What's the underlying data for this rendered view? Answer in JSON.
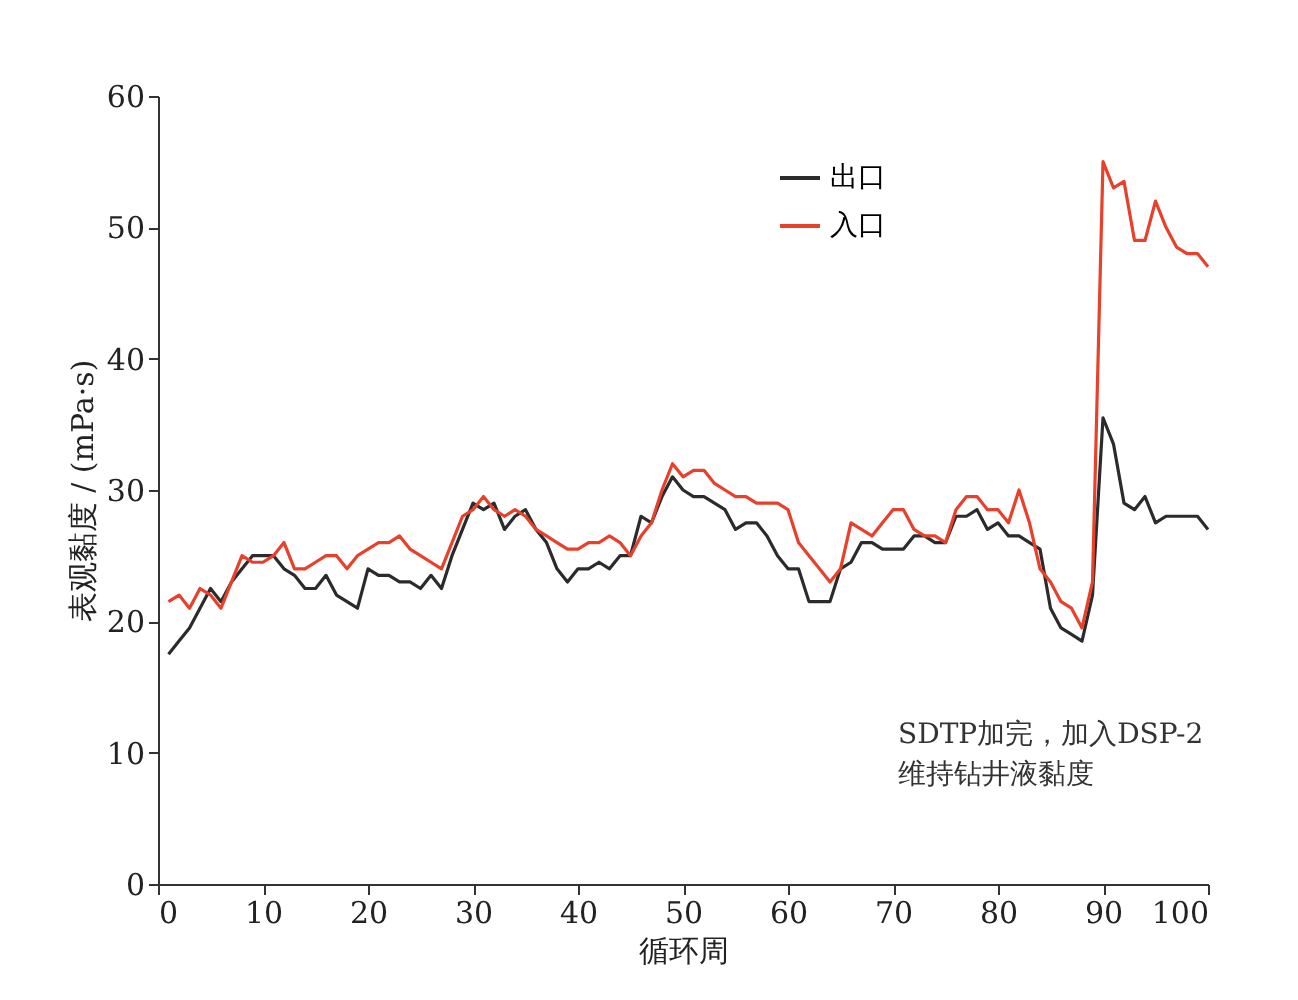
{
  "chart_data": {
    "type": "line",
    "xlabel": "循环周",
    "ylabel": "表观黏度 / (mPa·s)",
    "xlim": [
      0,
      100
    ],
    "xticks": [
      0,
      10,
      20,
      30,
      40,
      50,
      60,
      70,
      80,
      90,
      100
    ],
    "ylim": [
      0,
      60
    ],
    "yticks": [
      0,
      10,
      20,
      30,
      40,
      50,
      60
    ],
    "grid": false,
    "legend": "top right",
    "marker": "none",
    "line_style": "solid",
    "x": [
      1,
      2,
      3,
      4,
      5,
      6,
      7,
      8,
      9,
      10,
      11,
      12,
      13,
      14,
      15,
      16,
      17,
      18,
      19,
      20,
      21,
      22,
      23,
      24,
      25,
      26,
      27,
      28,
      29,
      30,
      31,
      32,
      33,
      34,
      35,
      36,
      37,
      38,
      39,
      40,
      41,
      42,
      43,
      44,
      45,
      46,
      47,
      48,
      49,
      50,
      51,
      52,
      53,
      54,
      55,
      56,
      57,
      58,
      59,
      60,
      61,
      62,
      63,
      64,
      65,
      66,
      67,
      68,
      69,
      70,
      71,
      72,
      73,
      74,
      75,
      76,
      77,
      78,
      79,
      80,
      81,
      82,
      83,
      84,
      85,
      86,
      87,
      88,
      89,
      90,
      91,
      92,
      93,
      94,
      95,
      96,
      97,
      98,
      99,
      100
    ],
    "series": [
      {
        "name": "出口",
        "color": "#2b2b2b",
        "values": [
          17.5,
          18.5,
          19.5,
          21,
          22.5,
          21.5,
          23,
          24,
          25,
          25,
          25,
          24,
          23.5,
          22.5,
          22.5,
          23.5,
          22,
          21.5,
          21,
          24,
          23.5,
          23.5,
          23,
          23,
          22.5,
          23.5,
          22.5,
          25,
          27,
          29,
          28.5,
          29,
          27,
          28,
          28.5,
          27,
          26,
          24,
          23,
          24,
          24,
          24.5,
          24,
          25,
          25,
          28,
          27.5,
          29.5,
          31,
          30,
          29.5,
          29.5,
          29,
          28.5,
          27,
          27.5,
          27.5,
          26.5,
          25,
          24,
          24,
          21.5,
          21.5,
          21.5,
          24,
          24.5,
          26,
          26,
          25.5,
          25.5,
          25.5,
          26.5,
          26.5,
          26,
          26,
          28,
          28,
          28.5,
          27,
          27.5,
          26.5,
          26.5,
          26,
          25.5,
          21,
          19.5,
          19,
          18.5,
          22,
          35.5,
          33.5,
          29,
          28.5,
          29.5,
          27.5,
          28,
          28,
          28,
          28,
          27
        ]
      },
      {
        "name": "入口",
        "color": "#e8402a",
        "values": [
          21.5,
          22,
          21,
          22.5,
          22,
          21,
          23,
          25,
          24.5,
          24.5,
          25,
          26,
          24,
          24,
          24.5,
          25,
          25,
          24,
          25,
          25.5,
          26,
          26,
          26.5,
          25.5,
          25,
          24.5,
          24,
          26,
          28,
          28.5,
          29.5,
          28.5,
          28,
          28.5,
          28,
          27,
          26.5,
          26,
          25.5,
          25.5,
          26,
          26,
          26.5,
          26,
          25,
          26.5,
          27.5,
          30,
          32,
          31,
          31.5,
          31.5,
          30.5,
          30,
          29.5,
          29.5,
          29,
          29,
          29,
          28.5,
          26,
          25,
          24,
          23,
          24,
          27.5,
          27,
          26.5,
          27.5,
          28.5,
          28.5,
          27,
          26.5,
          26.5,
          26,
          28.5,
          29.5,
          29.5,
          28.5,
          28.5,
          27.5,
          30,
          27.5,
          24,
          23,
          21.5,
          21,
          19.5,
          23,
          55,
          53,
          53.5,
          49,
          49,
          52,
          50,
          48.5,
          48,
          48,
          47
        ]
      }
    ],
    "annotations": [
      {
        "text": "SDTP加完，加入DSP-2\n维持钻井液黏度",
        "x": 88,
        "y": 18.5
      }
    ]
  }
}
